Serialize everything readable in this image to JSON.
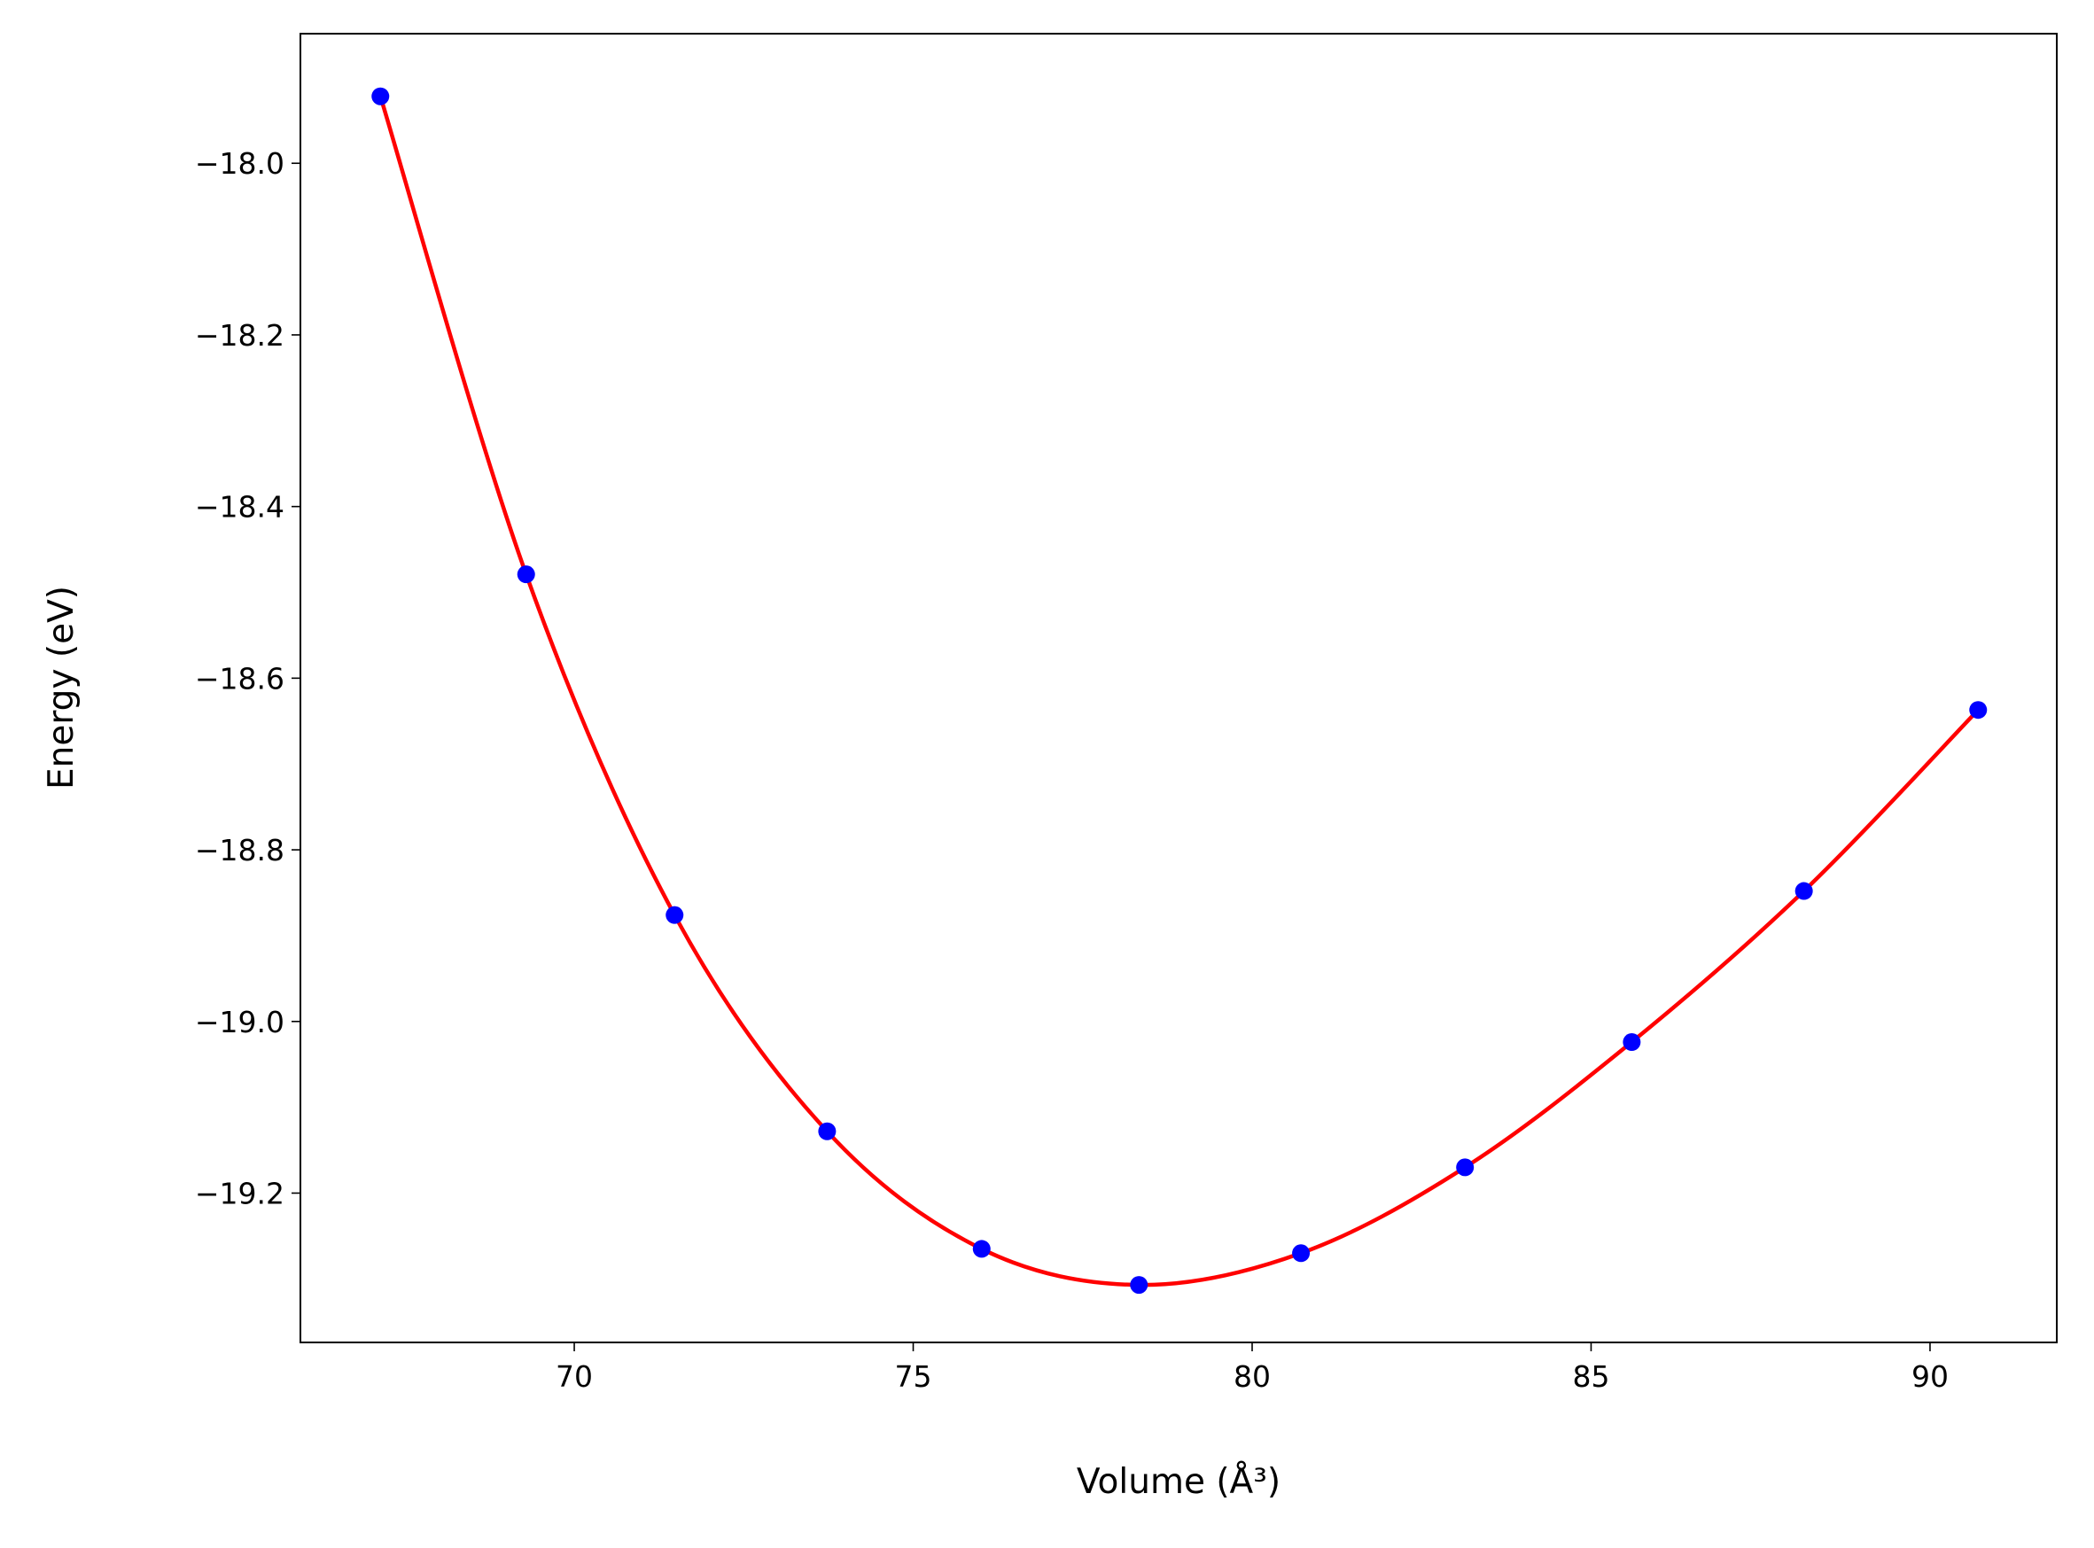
{
  "chart_data": {
    "type": "scatter",
    "x_label": "Volume (Å³)",
    "y_label": "Energy (eV)",
    "xlim": [
      65.96,
      91.87
    ],
    "ylim": [
      -19.374,
      -17.849
    ],
    "xticks": [
      70,
      75,
      80,
      85,
      90
    ],
    "yticks": [
      {
        "value": -18.0,
        "label": "−18.0"
      },
      {
        "value": -18.2,
        "label": "−18.2"
      },
      {
        "value": -18.4,
        "label": "−18.4"
      },
      {
        "value": -18.6,
        "label": "−18.6"
      },
      {
        "value": -18.8,
        "label": "−18.8"
      },
      {
        "value": -19.0,
        "label": "−19.0"
      },
      {
        "value": -19.2,
        "label": "−19.2"
      }
    ],
    "grid": false,
    "series": [
      {
        "style": "line",
        "color": "#ff0000",
        "x": [
          67.14,
          69.29,
          71.48,
          73.73,
          76.01,
          78.33,
          80.72,
          83.14,
          85.6,
          88.14,
          90.71
        ],
        "values": [
          -17.922,
          -18.479,
          -18.876,
          -19.128,
          -19.265,
          -19.307,
          -19.27,
          -19.17,
          -19.024,
          -18.848,
          -18.637
        ]
      },
      {
        "style": "marker",
        "color": "#0000ff",
        "x": [
          67.14,
          69.29,
          71.48,
          73.73,
          76.01,
          78.33,
          80.72,
          83.14,
          85.6,
          88.14,
          90.71
        ],
        "values": [
          -17.922,
          -18.479,
          -18.876,
          -19.128,
          -19.265,
          -19.307,
          -19.27,
          -19.17,
          -19.024,
          -18.848,
          -18.637
        ]
      }
    ]
  }
}
